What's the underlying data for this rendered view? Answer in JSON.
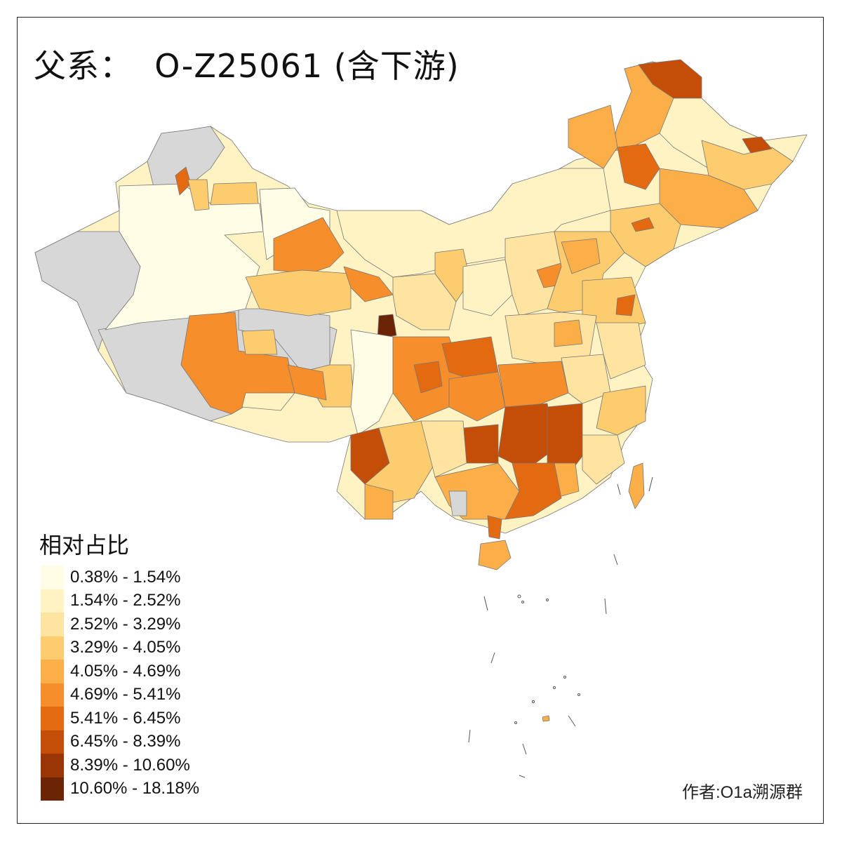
{
  "map": {
    "title": "父系：  O-Z25061 (含下游)",
    "legend_title": "相对占比",
    "legend": [
      {
        "label": "0.38% - 1.54%",
        "color": "#fffde6"
      },
      {
        "label": "1.54% - 2.52%",
        "color": "#fff3c4"
      },
      {
        "label": "2.52% - 3.29%",
        "color": "#fee4a0"
      },
      {
        "label": "3.29% - 4.05%",
        "color": "#fdcc6e"
      },
      {
        "label": "4.05% - 4.69%",
        "color": "#fcae48"
      },
      {
        "label": "4.69% - 5.41%",
        "color": "#f68e2c"
      },
      {
        "label": "5.41% - 6.45%",
        "color": "#e46a12"
      },
      {
        "label": "6.45% - 8.39%",
        "color": "#c44d07"
      },
      {
        "label": "8.39% - 10.60%",
        "color": "#9a3506"
      },
      {
        "label": "10.60% - 18.18%",
        "color": "#6b2506"
      }
    ],
    "no_data_color": "#d7d7d7",
    "author": "作者:O1a溯源群"
  }
}
